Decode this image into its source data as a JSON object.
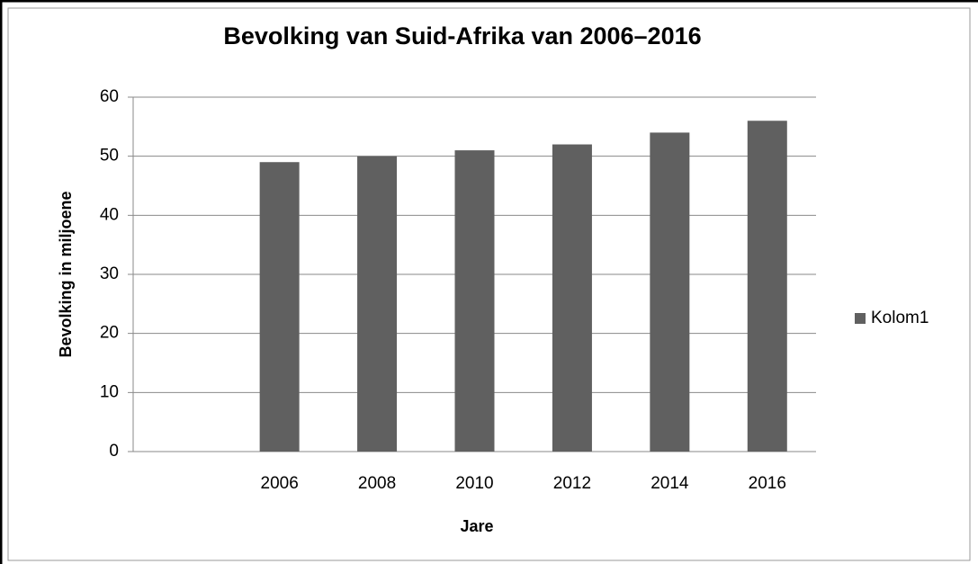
{
  "chart_data": {
    "type": "bar",
    "title": "Bevolking van Suid-Afrika van 2006–2016",
    "x_label": "Jare",
    "y_label": "Bevolking in miljoene",
    "categories": [
      null,
      "2006",
      "2008",
      "2010",
      "2012",
      "2014",
      "2016"
    ],
    "series": [
      {
        "name": "Kolom1",
        "color": "#606060",
        "values": [
          null,
          49,
          50,
          51,
          52,
          54,
          56
        ]
      }
    ],
    "ylim": [
      0,
      60
    ],
    "yticks": [
      0,
      10,
      20,
      30,
      40,
      50,
      60
    ],
    "grid": true,
    "legend": "right"
  }
}
